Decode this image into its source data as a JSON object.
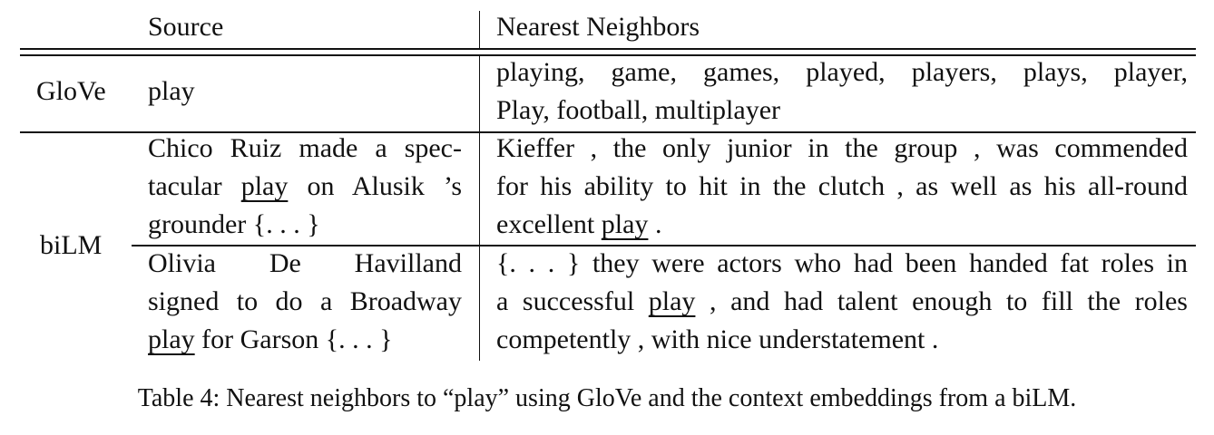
{
  "table": {
    "header": {
      "source": "Source",
      "neighbors": "Nearest Neighbors"
    },
    "glove": {
      "label": "GloVe",
      "source": "play",
      "neighbors_line1": "playing, game, games, played, players, plays, player,",
      "neighbors_line2": "Play, football, multiplayer"
    },
    "bilm": {
      "label": "biLM",
      "row1": {
        "source_line1": "Chico Ruiz made a spec-",
        "source_line2_pre": "tacular ",
        "source_line2_word": "play",
        "source_line2_post": " on Alusik ’s",
        "source_line3": "grounder {. . . }",
        "neighbor_line1": "Kieffer , the only junior in the group , was commended",
        "neighbor_line2": "for his ability to hit in the clutch , as well as his all-round",
        "neighbor_line3_pre": "excellent ",
        "neighbor_line3_word": "play",
        "neighbor_line3_post": " ."
      },
      "row2": {
        "source_line1": "Olivia De Havilland",
        "source_line2": "signed to do a Broadway",
        "source_line3_word": "play",
        "source_line3_post": " for Garson {. . . }",
        "neighbor_line1": "{. . . } they were actors who had been handed fat roles in",
        "neighbor_line2_pre": "a successful ",
        "neighbor_line2_word": "play",
        "neighbor_line2_post": " , and had talent enough to fill the roles",
        "neighbor_line3": "competently , with nice understatement ."
      }
    }
  },
  "caption": "Table 4: Nearest neighbors to “play” using GloVe and the context embeddings from a biLM."
}
